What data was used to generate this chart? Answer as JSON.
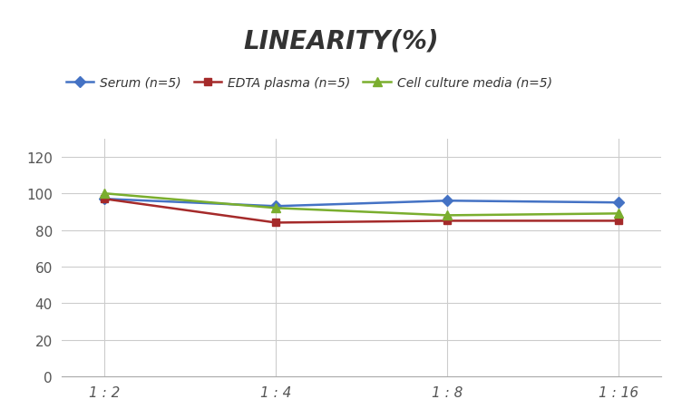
{
  "title": "LINEARITY(%)",
  "x_labels": [
    "1 : 2",
    "1 : 4",
    "1 : 8",
    "1 : 16"
  ],
  "x_positions": [
    0,
    1,
    2,
    3
  ],
  "series": [
    {
      "name": "Serum (n=5)",
      "values": [
        97,
        93,
        96,
        95
      ],
      "color": "#4472C4",
      "marker": "D",
      "marker_size": 6,
      "linewidth": 1.8
    },
    {
      "name": "EDTA plasma (n=5)",
      "values": [
        97,
        84,
        85,
        85
      ],
      "color": "#A52A2A",
      "marker": "s",
      "marker_size": 6,
      "linewidth": 1.8
    },
    {
      "name": "Cell culture media (n=5)",
      "values": [
        100,
        92,
        88,
        89
      ],
      "color": "#7AAE2E",
      "marker": "^",
      "marker_size": 7,
      "linewidth": 1.8
    }
  ],
  "ylim": [
    0,
    130
  ],
  "yticks": [
    0,
    20,
    40,
    60,
    80,
    100,
    120
  ],
  "background_color": "#ffffff",
  "grid_color": "#cccccc",
  "title_fontsize": 20,
  "legend_fontsize": 10,
  "tick_fontsize": 11,
  "tick_color": "#555555"
}
